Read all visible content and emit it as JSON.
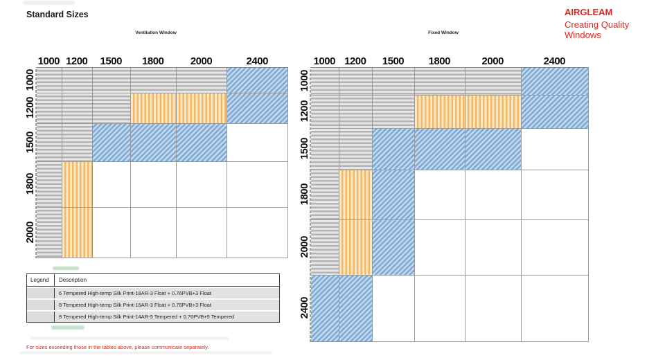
{
  "page": {
    "title": "Standard Sizes",
    "note": "For sizes exceeding those in the tables above, please communicate separately."
  },
  "brand": {
    "name": "AIRGLEAM",
    "tagline": "Creating Quality Windows",
    "color": "#e8231d"
  },
  "legend": {
    "headers": [
      "Legend",
      "Description"
    ],
    "rows": [
      "6 Tempered High-temp Silk Print-18AR-3 Float + 0.76PVB+3 Float",
      "8 Tempered High-temp Silk Print-16AR-3 Float + 0.76PVB+3 Float",
      "8 Tempered High-temp Silk Print-14AR-5 Tempered + 0.76PVB+5 Tempered"
    ]
  },
  "colors": {
    "brand_red": "#e8231d",
    "pattern_gray_light": "#e6e6e6",
    "pattern_gray_dark": "#b4b4b4",
    "pattern_orange_light": "#fbe9c4",
    "pattern_orange_dark": "#f4b768",
    "pattern_blue_light": "#c2daf0",
    "pattern_blue_dark": "#7fa9d4",
    "grid_line": "#999999"
  },
  "chart_data": [
    {
      "type": "heatmap",
      "title": "Ventilation Window",
      "columns": [
        "1000",
        "1200",
        "1500",
        "1800",
        "2000",
        "2400"
      ],
      "rows": [
        "1000",
        "1200",
        "1500",
        "1800",
        "2000"
      ],
      "cell_patterns": [
        "gray",
        "orange",
        "blue",
        "none"
      ],
      "cells": [
        [
          "gray",
          "gray",
          "gray",
          "gray",
          "gray",
          "blue"
        ],
        [
          "gray",
          "gray",
          "gray",
          "orange",
          "orange",
          "blue"
        ],
        [
          "gray",
          "gray",
          "blue",
          "blue",
          "blue",
          "none"
        ],
        [
          "gray",
          "orange",
          "none",
          "none",
          "none",
          "none"
        ],
        [
          "gray",
          "orange",
          "none",
          "none",
          "none",
          "none"
        ]
      ]
    },
    {
      "type": "heatmap",
      "title": "Fixed Window",
      "columns": [
        "1000",
        "1200",
        "1500",
        "1800",
        "2000",
        "2400"
      ],
      "rows": [
        "1000",
        "1200",
        "1500",
        "1800",
        "2000",
        "2400"
      ],
      "cell_patterns": [
        "gray",
        "orange",
        "blue",
        "none"
      ],
      "cells": [
        [
          "gray",
          "gray",
          "gray",
          "gray",
          "gray",
          "blue"
        ],
        [
          "gray",
          "gray",
          "gray",
          "orange",
          "orange",
          "blue"
        ],
        [
          "gray",
          "gray",
          "blue",
          "blue",
          "blue",
          "none"
        ],
        [
          "gray",
          "orange",
          "blue",
          "none",
          "none",
          "none"
        ],
        [
          "gray",
          "orange",
          "blue",
          "none",
          "none",
          "none"
        ],
        [
          "blue",
          "blue",
          "none",
          "none",
          "none",
          "none"
        ]
      ]
    }
  ]
}
